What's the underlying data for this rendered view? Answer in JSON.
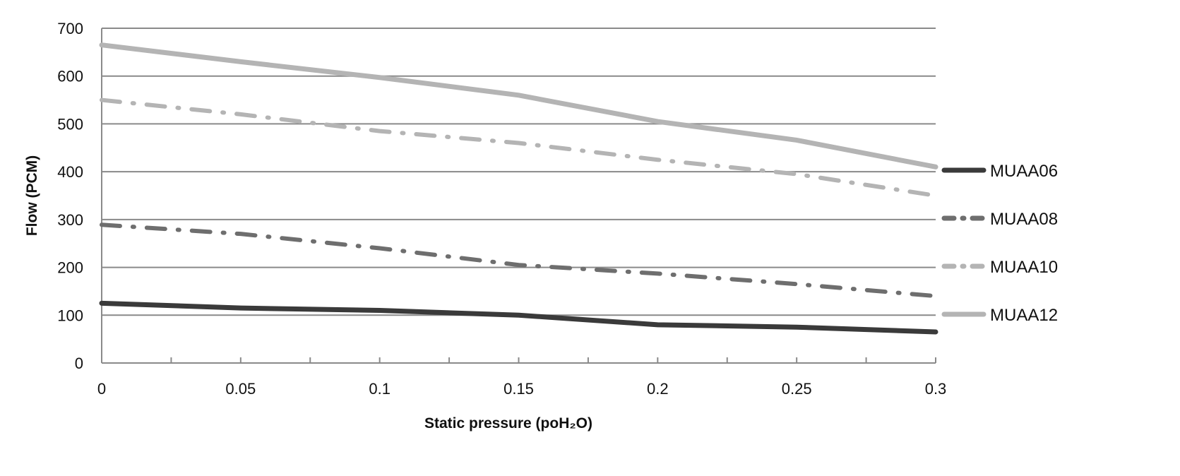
{
  "chart_data": {
    "type": "line",
    "title": "",
    "xlabel": "Static pressure (poH₂O)",
    "ylabel": "Flow (PCM)",
    "x": [
      0,
      0.05,
      0.1,
      0.15,
      0.2,
      0.25,
      0.3
    ],
    "x_tick_labels": [
      "0",
      "0.05",
      "0.1",
      "0.15",
      "0.2",
      "0.25",
      "0.3"
    ],
    "y_tick_labels": [
      "0",
      "100",
      "200",
      "300",
      "400",
      "500",
      "600",
      "700"
    ],
    "xlim": [
      0,
      0.3
    ],
    "ylim": [
      0,
      700
    ],
    "grid": "horizontal",
    "legend_position": "right",
    "series": [
      {
        "name": "MUAA06",
        "values": [
          125,
          115,
          110,
          100,
          80,
          75,
          65
        ],
        "color": "#3a3a3a",
        "style": "solid"
      },
      {
        "name": "MUAA08",
        "values": [
          289,
          270,
          240,
          205,
          187,
          165,
          140
        ],
        "color": "#6e6e6e",
        "style": "dash-dot"
      },
      {
        "name": "MUAA10",
        "values": [
          550,
          520,
          485,
          460,
          425,
          395,
          350
        ],
        "color": "#b4b4b4",
        "style": "dash-dot"
      },
      {
        "name": "MUAA12",
        "values": [
          665,
          630,
          597,
          560,
          505,
          466,
          410
        ],
        "color": "#b4b4b4",
        "style": "solid"
      }
    ]
  }
}
